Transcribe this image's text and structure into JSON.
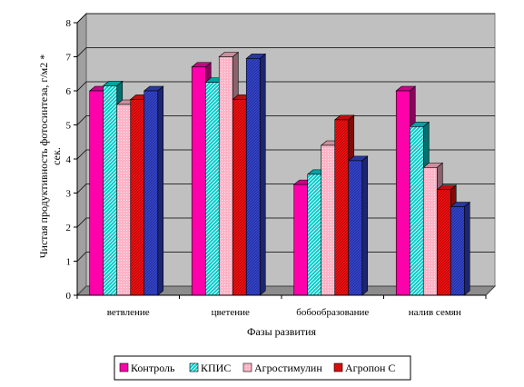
{
  "chart_data": {
    "type": "bar",
    "title": "",
    "xlabel": "Фазы развития",
    "ylabel": "Чистая продуктивность фотосинтеза, г/м2 * сек.",
    "ylabel_lines": [
      "Чистая продуктивность фотосинтеза, г/м2 *",
      "сек."
    ],
    "ylim": [
      0,
      8
    ],
    "yticks": [
      "0",
      "1",
      "2",
      "3",
      "4",
      "5",
      "6",
      "7",
      "8"
    ],
    "grid": true,
    "legend_position": "bottom",
    "categories": [
      "ветвление",
      "цветение",
      "бобообразование",
      "налив семян"
    ],
    "series": [
      {
        "name": "Контроль",
        "color": "#ff00aa",
        "pattern": "solid",
        "values": [
          6.0,
          6.7,
          3.25,
          6.0
        ]
      },
      {
        "name": "КПИС",
        "color": "#00cccc",
        "pattern": "hatch",
        "values": [
          6.15,
          6.25,
          3.55,
          4.95
        ]
      },
      {
        "name": "Агростимулин",
        "color": "#ffb3c6",
        "pattern": "dots",
        "values": [
          5.6,
          7.0,
          4.4,
          3.75
        ]
      },
      {
        "name": "Агропон С",
        "color": "#ee1111",
        "pattern": "dark-stripes",
        "values": [
          5.75,
          5.75,
          5.15,
          3.1
        ]
      },
      {
        "name": "",
        "color": "#3344cc",
        "pattern": "dark-stripes",
        "values": [
          6.0,
          6.95,
          3.95,
          2.6
        ]
      }
    ]
  }
}
